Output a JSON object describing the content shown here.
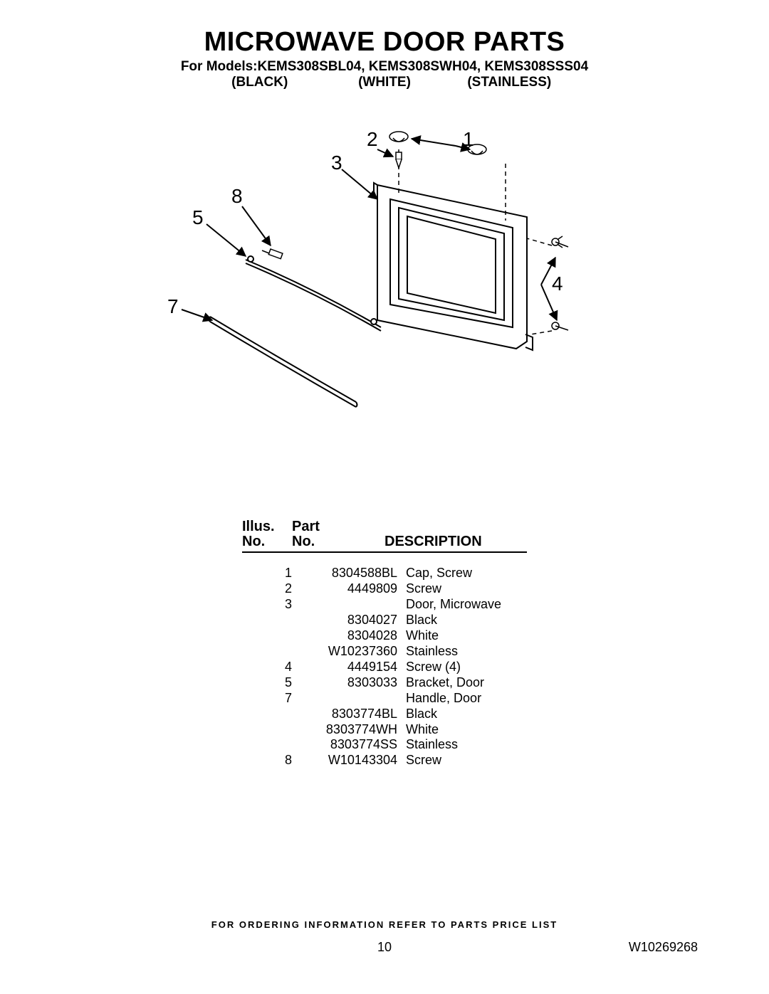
{
  "header": {
    "title": "MICROWAVE DOOR PARTS",
    "models_prefix": "For Models:",
    "models": "KEMS308SBL04, KEMS308SWH04, KEMS308SSS04",
    "color_labels": [
      "(BLACK)",
      "(WHITE)",
      "(STAINLESS)"
    ]
  },
  "diagram": {
    "callouts": [
      "1",
      "2",
      "3",
      "4",
      "5",
      "7",
      "8"
    ],
    "stroke": "#000000",
    "stroke_width": 2,
    "font_size": 28
  },
  "parts_table": {
    "headers": {
      "illus_top": "Illus.",
      "illus_bot": "No.",
      "part_top": "Part",
      "part_bot": "No.",
      "desc": "DESCRIPTION"
    },
    "rows": [
      {
        "illus": "1",
        "part": "8304588BL",
        "desc": "Cap, Screw"
      },
      {
        "illus": "2",
        "part": "4449809",
        "desc": "Screw"
      },
      {
        "illus": "3",
        "part": "",
        "desc": "Door, Microwave"
      },
      {
        "illus": "",
        "part": "8304027",
        "desc": "Black"
      },
      {
        "illus": "",
        "part": "8304028",
        "desc": "White"
      },
      {
        "illus": "",
        "part": "W10237360",
        "desc": "Stainless"
      },
      {
        "illus": "4",
        "part": "4449154",
        "desc": "Screw (4)"
      },
      {
        "illus": "5",
        "part": "8303033",
        "desc": "Bracket, Door"
      },
      {
        "illus": "7",
        "part": "",
        "desc": "Handle, Door"
      },
      {
        "illus": "",
        "part": "8303774BL",
        "desc": "Black"
      },
      {
        "illus": "",
        "part": "8303774WH",
        "desc": "White"
      },
      {
        "illus": "",
        "part": "8303774SS",
        "desc": "Stainless"
      },
      {
        "illus": "8",
        "part": "W10143304",
        "desc": "Screw"
      }
    ]
  },
  "footer": {
    "note": "FOR ORDERING INFORMATION REFER TO PARTS PRICE LIST",
    "page_number": "10",
    "document_id": "W10269268"
  }
}
